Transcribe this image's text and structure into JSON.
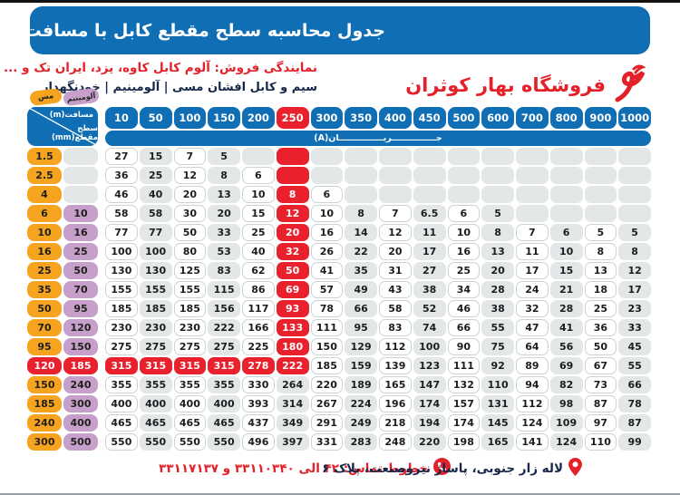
{
  "page": {
    "title": "جدول محاسبه سطح مقطع کابل با مسافت و آمپر(جریان) مورد نیاز",
    "dealer_line": "نمایندگی فروش: آلوم کابل کاوه، یزد، ایران تک و ...",
    "products_line": "سیم و کابل افشان مسی | آلومینیم | خودنگهدار",
    "store_name": "فروشگاه بهار کوثران"
  },
  "legend": {
    "copper_label": "مس",
    "aluminum_label": "آلومینیم"
  },
  "table": {
    "corner_top": "مسافت(m)",
    "corner_bottom": "سطح مقطع(mm)",
    "unit_banner": "جـــــــــــــــریـــــــــــــــان(A)",
    "columns": [
      "10",
      "50",
      "100",
      "150",
      "200",
      "250",
      "300",
      "350",
      "400",
      "450",
      "500",
      "600",
      "700",
      "800",
      "900",
      "1000"
    ],
    "highlight_column": "250",
    "highlight_row_copper": "120",
    "rows": [
      {
        "copper": "1.5",
        "aluminum": "",
        "values": [
          "27",
          "15",
          "7",
          "5",
          "",
          "",
          "",
          "",
          "",
          "",
          "",
          "",
          "",
          "",
          "",
          ""
        ]
      },
      {
        "copper": "2.5",
        "aluminum": "",
        "values": [
          "36",
          "25",
          "12",
          "8",
          "6",
          "",
          "",
          "",
          "",
          "",
          "",
          "",
          "",
          "",
          "",
          ""
        ]
      },
      {
        "copper": "4",
        "aluminum": "",
        "values": [
          "46",
          "40",
          "20",
          "13",
          "10",
          "8",
          "6",
          "",
          "",
          "",
          "",
          "",
          "",
          "",
          "",
          ""
        ]
      },
      {
        "copper": "6",
        "aluminum": "10",
        "values": [
          "58",
          "58",
          "30",
          "20",
          "15",
          "12",
          "10",
          "8",
          "7",
          "6.5",
          "6",
          "5",
          "",
          "",
          "",
          ""
        ]
      },
      {
        "copper": "10",
        "aluminum": "16",
        "values": [
          "77",
          "77",
          "50",
          "33",
          "25",
          "20",
          "16",
          "14",
          "12",
          "11",
          "10",
          "8",
          "7",
          "6",
          "5",
          "5"
        ]
      },
      {
        "copper": "16",
        "aluminum": "25",
        "values": [
          "100",
          "100",
          "80",
          "53",
          "40",
          "32",
          "26",
          "22",
          "20",
          "17",
          "16",
          "13",
          "11",
          "10",
          "8",
          "8"
        ]
      },
      {
        "copper": "25",
        "aluminum": "50",
        "values": [
          "130",
          "130",
          "125",
          "83",
          "62",
          "50",
          "41",
          "35",
          "31",
          "27",
          "25",
          "20",
          "17",
          "15",
          "13",
          "12"
        ]
      },
      {
        "copper": "35",
        "aluminum": "70",
        "values": [
          "155",
          "155",
          "155",
          "115",
          "86",
          "69",
          "57",
          "49",
          "43",
          "38",
          "34",
          "28",
          "24",
          "21",
          "18",
          "17"
        ]
      },
      {
        "copper": "50",
        "aluminum": "95",
        "values": [
          "185",
          "185",
          "185",
          "156",
          "117",
          "93",
          "78",
          "66",
          "58",
          "52",
          "46",
          "38",
          "32",
          "28",
          "25",
          "23"
        ]
      },
      {
        "copper": "70",
        "aluminum": "120",
        "values": [
          "230",
          "230",
          "230",
          "222",
          "166",
          "133",
          "111",
          "95",
          "83",
          "74",
          "66",
          "55",
          "47",
          "41",
          "36",
          "33"
        ]
      },
      {
        "copper": "95",
        "aluminum": "150",
        "values": [
          "275",
          "275",
          "275",
          "275",
          "225",
          "180",
          "150",
          "129",
          "112",
          "100",
          "90",
          "75",
          "64",
          "56",
          "50",
          "45"
        ]
      },
      {
        "copper": "120",
        "aluminum": "185",
        "values": [
          "315",
          "315",
          "315",
          "315",
          "278",
          "222",
          "185",
          "159",
          "139",
          "123",
          "111",
          "92",
          "89",
          "69",
          "67",
          "55"
        ]
      },
      {
        "copper": "150",
        "aluminum": "240",
        "values": [
          "355",
          "355",
          "355",
          "355",
          "330",
          "264",
          "220",
          "189",
          "165",
          "147",
          "132",
          "110",
          "94",
          "82",
          "73",
          "66"
        ]
      },
      {
        "copper": "185",
        "aluminum": "300",
        "values": [
          "400",
          "400",
          "400",
          "400",
          "393",
          "314",
          "267",
          "224",
          "196",
          "174",
          "157",
          "131",
          "112",
          "98",
          "87",
          "78"
        ]
      },
      {
        "copper": "240",
        "aluminum": "400",
        "values": [
          "465",
          "465",
          "465",
          "465",
          "437",
          "349",
          "291",
          "249",
          "218",
          "194",
          "174",
          "145",
          "124",
          "109",
          "97",
          "87"
        ]
      },
      {
        "copper": "300",
        "aluminum": "500",
        "values": [
          "550",
          "550",
          "550",
          "550",
          "496",
          "397",
          "331",
          "283",
          "248",
          "220",
          "198",
          "165",
          "141",
          "124",
          "110",
          "99"
        ]
      }
    ]
  },
  "footer": {
    "address": "لاله زار جنوبی، پاساژ نیروصنعت، پلاک ۶",
    "phones": "خطوط تماس: ۴۲ الی ۳۳۱۱۰۳۴۰ و ۳۳۱۱۷۱۳۷"
  },
  "colors": {
    "header_blue": "#0f6eb4",
    "highlight_red": "#e8212d",
    "copper_orange": "#f6a41f",
    "aluminum_purple": "#c6a0ca",
    "cell_gray": "#e3e7e8",
    "accent_red_text": "#e42029",
    "navy_text": "#16284a"
  }
}
